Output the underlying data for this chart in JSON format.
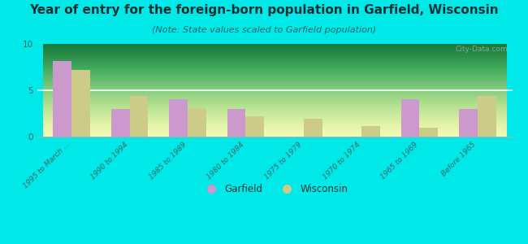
{
  "title": "Year of entry for the foreign-born population in Garfield, Wisconsin",
  "subtitle": "(Note: State values scaled to Garfield population)",
  "categories": [
    "1995 to March ...",
    "1990 to 1994",
    "1985 to 1989",
    "1980 to 1984",
    "1975 to 1979",
    "1970 to 1974",
    "1965 to 1969",
    "Before 1965"
  ],
  "garfield_values": [
    8.2,
    3.0,
    4.0,
    3.0,
    0.0,
    0.0,
    4.0,
    3.0
  ],
  "wisconsin_values": [
    7.2,
    4.4,
    3.1,
    2.2,
    1.9,
    1.1,
    1.0,
    4.4
  ],
  "garfield_color": "#cc99cc",
  "wisconsin_color": "#cccc88",
  "background_color": "#00e8e8",
  "ylim": [
    0,
    10
  ],
  "yticks": [
    0,
    5,
    10
  ],
  "bar_width": 0.32,
  "title_fontsize": 11,
  "subtitle_fontsize": 8,
  "title_color": "#003333",
  "subtitle_color": "#006666",
  "tick_color": "#336666",
  "watermark": "City-Data.com",
  "legend_garfield": "Garfield",
  "legend_wisconsin": "Wisconsin"
}
